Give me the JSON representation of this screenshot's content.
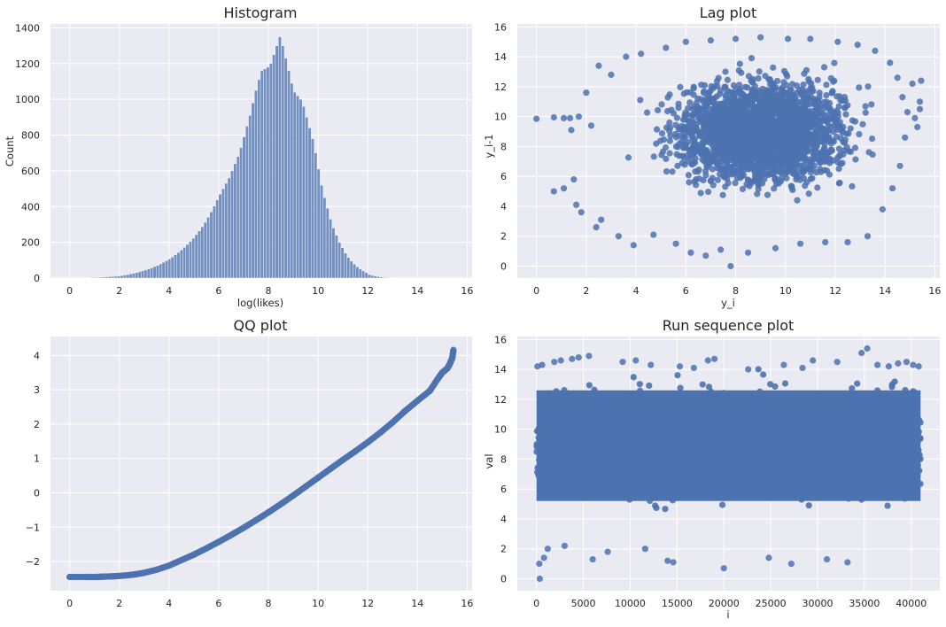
{
  "colors": {
    "mark": "#4c72b0",
    "axes_bg": "#eaeaf2",
    "grid": "#ffffff",
    "text": "#262626"
  },
  "chart_data": [
    {
      "id": "histogram",
      "type": "bar",
      "title": "Histogram",
      "xlabel": "log(likes)",
      "ylabel": "Count",
      "xlim": [
        -0.77,
        16.2
      ],
      "ylim": [
        0,
        1422
      ],
      "xticks": [
        0,
        2,
        4,
        6,
        8,
        10,
        12,
        14,
        16
      ],
      "yticks": [
        0,
        200,
        400,
        600,
        800,
        1000,
        1200,
        1400
      ],
      "grid": true,
      "bin_start": 0.6,
      "bin_width": 0.12,
      "values": [
        2,
        2,
        3,
        3,
        4,
        5,
        6,
        7,
        8,
        9,
        10,
        12,
        14,
        17,
        20,
        23,
        27,
        31,
        35,
        40,
        45,
        51,
        57,
        64,
        71,
        79,
        88,
        97,
        107,
        118,
        130,
        143,
        157,
        172,
        188,
        205,
        223,
        243,
        264,
        287,
        312,
        340,
        370,
        403,
        438,
        470,
        500,
        530,
        560,
        600,
        640,
        680,
        730,
        790,
        850,
        910,
        980,
        1050,
        1110,
        1160,
        1170,
        1180,
        1200,
        1250,
        1300,
        1350,
        1300,
        1230,
        1160,
        1090,
        1040,
        1020,
        1000,
        960,
        900,
        840,
        780,
        700,
        610,
        520,
        450,
        390,
        330,
        280,
        240,
        200,
        170,
        140,
        115,
        95,
        78,
        63,
        50,
        40,
        30,
        20,
        15,
        12,
        8,
        6,
        4,
        3,
        2,
        2
      ]
    },
    {
      "id": "lag-plot",
      "type": "scatter",
      "title": "Lag plot",
      "xlabel": "y_i",
      "ylabel": "y_i-1",
      "xlim": [
        -0.77,
        16.2
      ],
      "ylim": [
        -0.8,
        16.2
      ],
      "xticks": [
        0,
        2,
        4,
        6,
        8,
        10,
        12,
        14,
        16
      ],
      "yticks": [
        0,
        2,
        4,
        6,
        8,
        10,
        12,
        14,
        16
      ],
      "grid": true,
      "points": [
        [
          0,
          9.85
        ],
        [
          0.7,
          5.0
        ],
        [
          0.7,
          9.95
        ],
        [
          1.1,
          5.2
        ],
        [
          1.1,
          9.9
        ],
        [
          1.35,
          9.9
        ],
        [
          1.4,
          9.1
        ],
        [
          1.5,
          5.8
        ],
        [
          1.6,
          4.1
        ],
        [
          1.7,
          10.0
        ],
        [
          1.8,
          3.6
        ],
        [
          2.0,
          11.6
        ],
        [
          2.2,
          9.4
        ],
        [
          2.4,
          2.6
        ],
        [
          2.5,
          13.4
        ],
        [
          2.6,
          3.1
        ],
        [
          3.0,
          12.8
        ],
        [
          3.3,
          2.0
        ],
        [
          3.6,
          14.0
        ],
        [
          3.9,
          1.4
        ],
        [
          4.2,
          14.2
        ],
        [
          4.7,
          2.1
        ],
        [
          5.2,
          14.6
        ],
        [
          5.6,
          1.5
        ],
        [
          6.0,
          15.0
        ],
        [
          6.2,
          0.9
        ],
        [
          6.8,
          0.7
        ],
        [
          7.0,
          15.1
        ],
        [
          7.4,
          1.1
        ],
        [
          7.8,
          0.0
        ],
        [
          8.0,
          15.2
        ],
        [
          8.5,
          0.9
        ],
        [
          9.0,
          15.3
        ],
        [
          9.6,
          1.2
        ],
        [
          10.1,
          15.2
        ],
        [
          10.6,
          1.5
        ],
        [
          11.0,
          15.2
        ],
        [
          11.6,
          1.6
        ],
        [
          12.1,
          15.0
        ],
        [
          12.5,
          1.6
        ],
        [
          12.9,
          14.8
        ],
        [
          13.3,
          2.0
        ],
        [
          13.6,
          14.4
        ],
        [
          13.9,
          3.8
        ],
        [
          14.2,
          13.6
        ],
        [
          14.3,
          5.2
        ],
        [
          14.5,
          12.6
        ],
        [
          14.6,
          6.7
        ],
        [
          14.7,
          11.3
        ],
        [
          14.8,
          8.6
        ],
        [
          14.9,
          10.3
        ],
        [
          15.1,
          12.2
        ],
        [
          15.2,
          9.9
        ],
        [
          15.4,
          10.5
        ],
        [
          15.45,
          12.4
        ],
        [
          15.4,
          11.0
        ],
        [
          15.3,
          9.3
        ]
      ]
    },
    {
      "id": "qq-plot",
      "type": "scatter",
      "title": "QQ plot",
      "xlabel": "",
      "ylabel": "",
      "xlim": [
        -0.77,
        16.2
      ],
      "ylim": [
        -2.85,
        4.55
      ],
      "xticks": [
        0,
        2,
        4,
        6,
        8,
        10,
        12,
        14,
        16
      ],
      "yticks": [
        -2,
        -1,
        0,
        1,
        2,
        3,
        4
      ],
      "grid": true,
      "points": [
        [
          0,
          -2.45
        ],
        [
          0.7,
          -2.45
        ],
        [
          1.1,
          -2.45
        ],
        [
          1.4,
          -2.44
        ],
        [
          1.8,
          -2.43
        ],
        [
          2.2,
          -2.41
        ],
        [
          2.6,
          -2.38
        ],
        [
          3.0,
          -2.33
        ],
        [
          3.5,
          -2.24
        ],
        [
          4.0,
          -2.12
        ],
        [
          4.5,
          -1.96
        ],
        [
          5.0,
          -1.8
        ],
        [
          5.5,
          -1.62
        ],
        [
          6.0,
          -1.43
        ],
        [
          6.5,
          -1.23
        ],
        [
          7.0,
          -1.02
        ],
        [
          7.5,
          -0.8
        ],
        [
          8.0,
          -0.57
        ],
        [
          8.5,
          -0.33
        ],
        [
          9.0,
          -0.08
        ],
        [
          9.5,
          0.18
        ],
        [
          10.0,
          0.44
        ],
        [
          10.5,
          0.7
        ],
        [
          11.0,
          0.96
        ],
        [
          11.5,
          1.21
        ],
        [
          12.0,
          1.47
        ],
        [
          12.5,
          1.75
        ],
        [
          13.0,
          2.05
        ],
        [
          13.5,
          2.38
        ],
        [
          14.0,
          2.68
        ],
        [
          14.5,
          2.97
        ],
        [
          14.8,
          3.3
        ],
        [
          15.0,
          3.5
        ],
        [
          15.2,
          3.62
        ],
        [
          15.3,
          3.75
        ],
        [
          15.4,
          3.92
        ],
        [
          15.45,
          4.16
        ]
      ]
    },
    {
      "id": "run-sequence-plot",
      "type": "scatter",
      "title": "Run sequence plot",
      "xlabel": "i",
      "ylabel": "val",
      "xlim": [
        -2050,
        43050
      ],
      "ylim": [
        -0.8,
        16.2
      ],
      "xticks": [
        0,
        5000,
        10000,
        15000,
        20000,
        25000,
        30000,
        35000,
        40000
      ],
      "yticks": [
        0,
        2,
        4,
        6,
        8,
        10,
        12,
        14,
        16
      ],
      "grid": true,
      "points": [
        [
          100,
          14.2
        ],
        [
          300,
          1.0
        ],
        [
          350,
          0.0
        ],
        [
          600,
          14.3
        ],
        [
          800,
          1.4
        ],
        [
          1200,
          2.0
        ],
        [
          1900,
          14.5
        ],
        [
          2600,
          14.6
        ],
        [
          3000,
          2.2
        ],
        [
          3800,
          14.7
        ],
        [
          4500,
          14.8
        ],
        [
          5600,
          14.9
        ],
        [
          6000,
          1.3
        ],
        [
          7600,
          1.8
        ],
        [
          9200,
          14.5
        ],
        [
          10600,
          14.6
        ],
        [
          11600,
          2.0
        ],
        [
          12200,
          14.3
        ],
        [
          14000,
          1.2
        ],
        [
          14600,
          1.1
        ],
        [
          15300,
          14.2
        ],
        [
          16800,
          14.1
        ],
        [
          18300,
          14.6
        ],
        [
          19000,
          14.7
        ],
        [
          20000,
          0.7
        ],
        [
          22600,
          14.0
        ],
        [
          24800,
          1.4
        ],
        [
          26400,
          14.3
        ],
        [
          27200,
          1.0
        ],
        [
          28400,
          14.1
        ],
        [
          29500,
          14.6
        ],
        [
          31000,
          1.3
        ],
        [
          32100,
          14.5
        ],
        [
          33200,
          1.1
        ],
        [
          34700,
          15.1
        ],
        [
          35300,
          15.4
        ],
        [
          36400,
          14.3
        ],
        [
          37600,
          14.2
        ],
        [
          38600,
          14.4
        ],
        [
          39500,
          14.5
        ],
        [
          40200,
          14.3
        ],
        [
          40800,
          14.2
        ]
      ],
      "band": {
        "x_range": [
          0,
          41000
        ],
        "y_dense": [
          5.2,
          12.6
        ]
      }
    }
  ]
}
